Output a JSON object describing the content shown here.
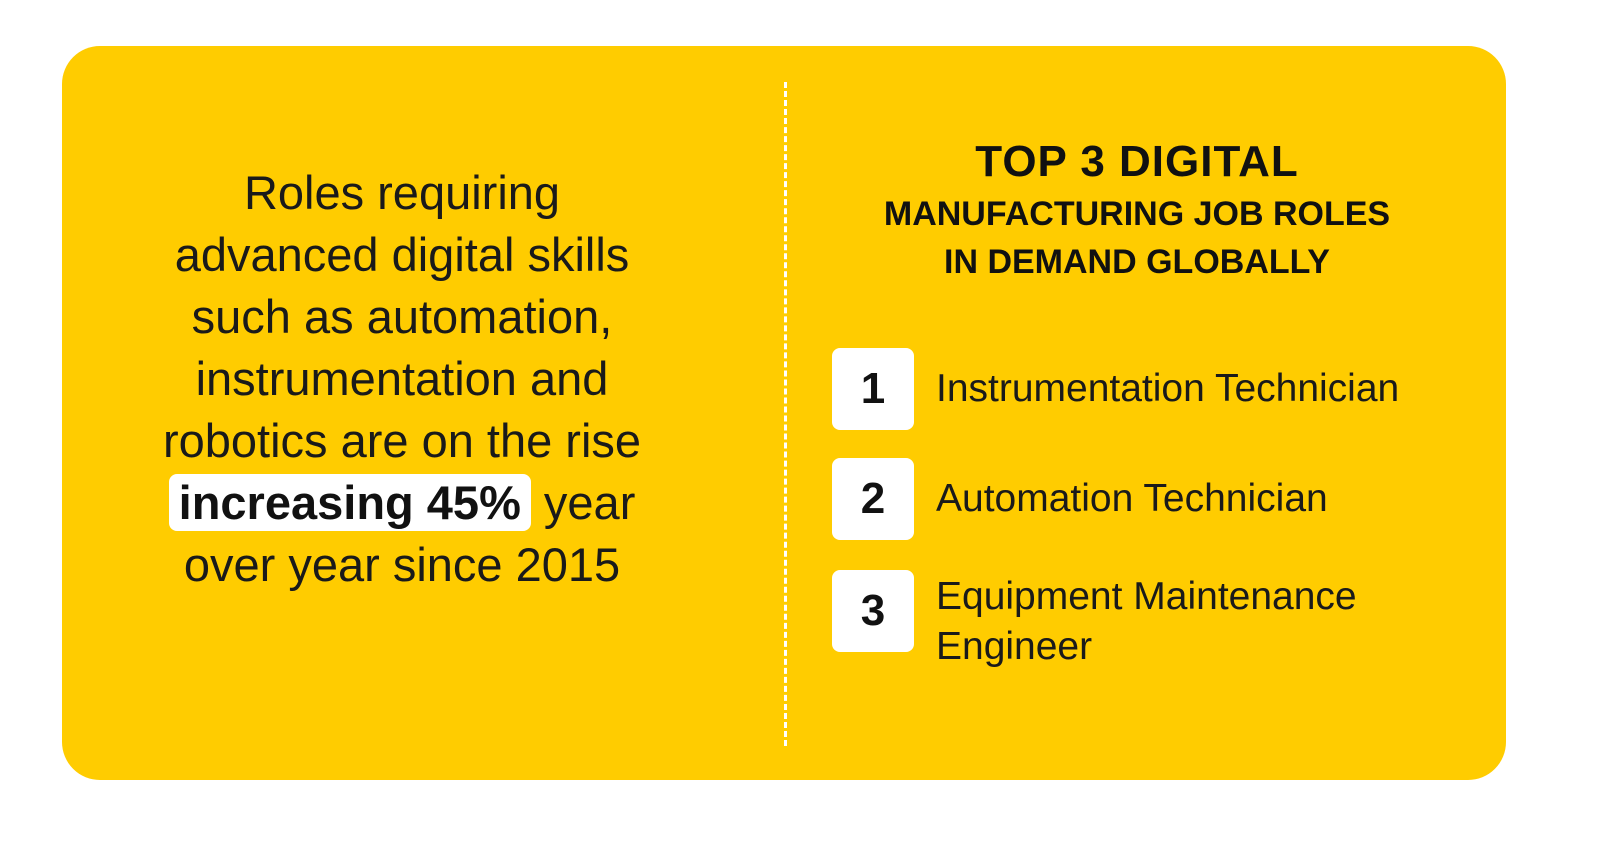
{
  "left_panel": {
    "lines": [
      "Roles requiring",
      "advanced digital skills",
      "such as automation,",
      "instrumentation and",
      "robotics are on the rise"
    ],
    "highlight": "increasing 45%",
    "after_highlight": " year",
    "last_line": "over year since 2015"
  },
  "right_panel": {
    "heading_line1": "TOP 3 DIGITAL",
    "heading_line2": "MANUFACTURING JOB ROLES",
    "heading_line3": "IN DEMAND GLOBALLY",
    "roles": [
      {
        "number": "1",
        "label": "Instrumentation Technician"
      },
      {
        "number": "2",
        "label": "Automation Technician"
      },
      {
        "number": "3",
        "label": "Equipment Maintenance Engineer"
      }
    ]
  },
  "colors": {
    "card_background": "#FFCC00",
    "badge_background": "#FFFFFF",
    "text": "#1A1A1A"
  }
}
